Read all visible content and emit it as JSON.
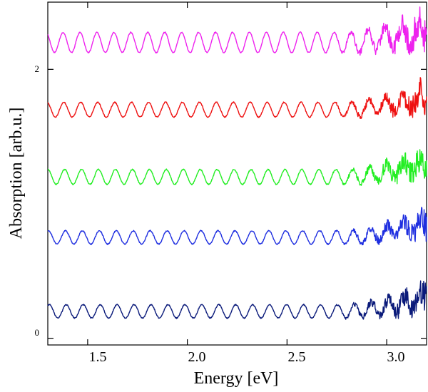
{
  "chart_data": {
    "type": "line",
    "title": "",
    "xlabel": "Energy [eV]",
    "ylabel": "Absorption [arb.u.]",
    "xlim": [
      1.3,
      3.2
    ],
    "ylim": [
      -0.05,
      2.5
    ],
    "x_ticks": [
      1.5,
      2.0,
      2.5,
      3.0
    ],
    "x_tick_labels": [
      "1.5",
      "2.0",
      "2.5",
      "3.0"
    ],
    "y_ticks": [
      0,
      2
    ],
    "y_tick_labels": [
      "0",
      "2"
    ],
    "series": [
      {
        "name": "navy",
        "color": "#0a1a7a",
        "baseline": 0.2,
        "amplitude": 0.05,
        "period": 0.085,
        "phase": 1.0,
        "noise": 0.12
      },
      {
        "name": "blue",
        "color": "#1f2fe0",
        "baseline": 0.75,
        "amplitude": 0.05,
        "period": 0.085,
        "phase": 1.3,
        "noise": 0.11
      },
      {
        "name": "green",
        "color": "#22ee22",
        "baseline": 1.2,
        "amplitude": 0.055,
        "period": 0.085,
        "phase": 1.6,
        "noise": 0.12
      },
      {
        "name": "red",
        "color": "#ee1111",
        "baseline": 1.7,
        "amplitude": 0.055,
        "period": 0.085,
        "phase": 1.9,
        "noise": 0.12
      },
      {
        "name": "magenta",
        "color": "#ee22ee",
        "baseline": 2.2,
        "amplitude": 0.075,
        "period": 0.085,
        "phase": 2.2,
        "noise": 0.14
      }
    ]
  }
}
